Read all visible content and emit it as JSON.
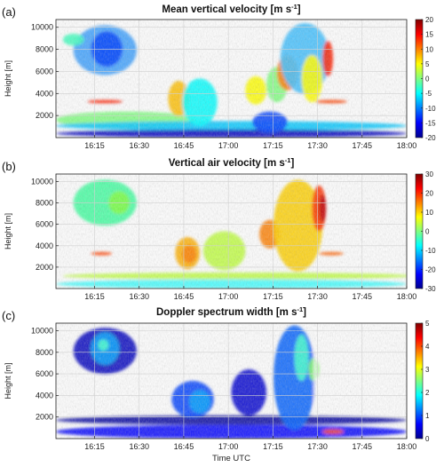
{
  "chart_data": [
    {
      "type": "heatmap",
      "panel_label": "(a)",
      "title": "Mean vertical velocity [m s",
      "title_sup": "-1",
      "title_end": "]",
      "ylabel": "Height [m]",
      "xlabel": "",
      "y_ticks": [
        2000,
        4000,
        6000,
        8000,
        10000
      ],
      "x_ticks": [
        "16:15",
        "16:30",
        "16:45",
        "17:00",
        "17:15",
        "17:30",
        "17:45",
        "18:00"
      ],
      "colorbar_ticks": [
        20,
        15,
        10,
        5,
        0,
        -5,
        -10,
        -15,
        -20
      ],
      "clim": [
        -20,
        20
      ],
      "grid": true
    },
    {
      "type": "heatmap",
      "panel_label": "(b)",
      "title": "Vertical air velocity [m s",
      "title_sup": "-1",
      "title_end": "]",
      "ylabel": "Height [m]",
      "xlabel": "",
      "y_ticks": [
        2000,
        4000,
        6000,
        8000,
        10000
      ],
      "x_ticks": [
        "16:15",
        "16:30",
        "16:45",
        "17:00",
        "17:15",
        "17:30",
        "17:45",
        "18:00"
      ],
      "colorbar_ticks": [
        30,
        20,
        10,
        0,
        -10,
        -20,
        -30
      ],
      "clim": [
        -30,
        30
      ],
      "grid": true
    },
    {
      "type": "heatmap",
      "panel_label": "(c)",
      "title": "Doppler spectrum width [m s",
      "title_sup": "-1",
      "title_end": "]",
      "ylabel": "Height [m]",
      "xlabel": "Time UTC",
      "y_ticks": [
        2000,
        4000,
        6000,
        8000,
        10000
      ],
      "x_ticks": [
        "16:15",
        "16:30",
        "16:45",
        "17:00",
        "17:15",
        "17:30",
        "17:45",
        "18:00"
      ],
      "colorbar_ticks": [
        5,
        4,
        3,
        2,
        1,
        0
      ],
      "clim": [
        0,
        5
      ],
      "grid": true
    }
  ],
  "colors": {
    "colormap": [
      "#00008f",
      "#0000ff",
      "#0080ff",
      "#00ffff",
      "#80ff80",
      "#ffff00",
      "#ff8000",
      "#ff0000",
      "#800000"
    ]
  }
}
